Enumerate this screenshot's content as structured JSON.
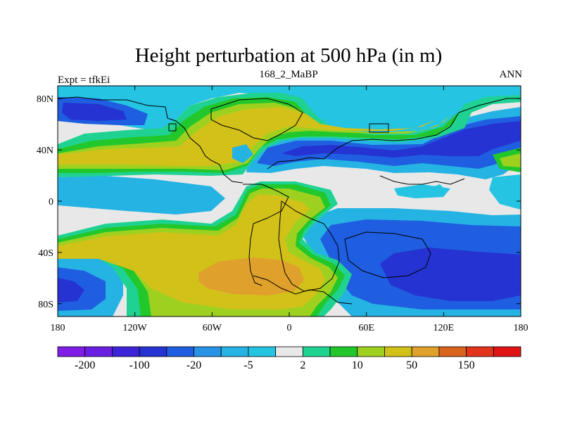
{
  "title": "Height perturbation at 500 hPa (in m)",
  "left_label": "Expt = tfkEi",
  "center_label": "168_2_MaBP",
  "right_label": "ANN",
  "map": {
    "x_ticks": [
      "180",
      "120W",
      "60W",
      "0",
      "60E",
      "120E",
      "180"
    ],
    "y_ticks": [
      "80N",
      "40N",
      "0",
      "40S",
      "80S"
    ],
    "x_tick_values": [
      -180,
      -120,
      -60,
      0,
      60,
      120,
      180
    ],
    "y_tick_values": [
      80,
      40,
      0,
      -40,
      -80
    ]
  },
  "colorbar": {
    "colors": [
      "#7f1de6",
      "#6a1fe3",
      "#3d24d8",
      "#2433d2",
      "#1f5ee0",
      "#2893e6",
      "#25b3e3",
      "#24c4e2",
      "#e8e8e8",
      "#20d291",
      "#22c72c",
      "#9ed11f",
      "#d2c119",
      "#e0a02c",
      "#d9641d",
      "#e2341c",
      "#e01414"
    ],
    "labels": [
      "-200",
      "-100",
      "-20",
      "-5",
      "2",
      "10",
      "50",
      "150"
    ]
  }
}
